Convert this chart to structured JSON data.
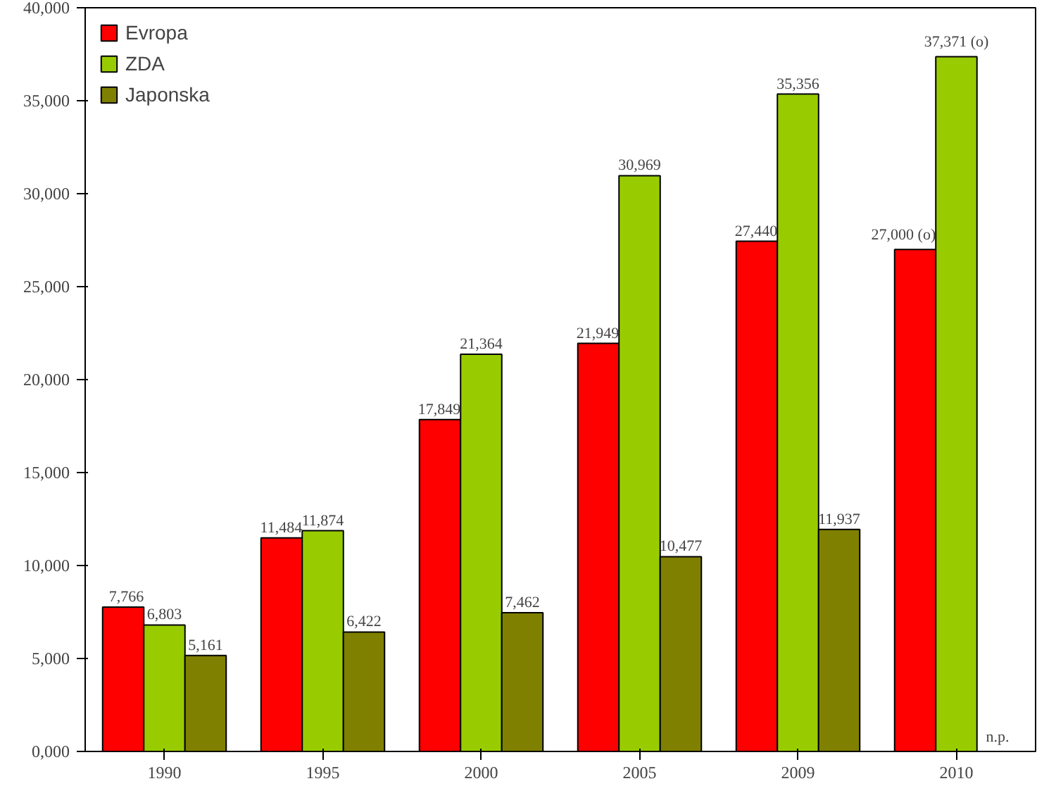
{
  "chart_data": {
    "type": "bar",
    "categories": [
      "1990",
      "1995",
      "2000",
      "2005",
      "2009",
      "2010"
    ],
    "series": [
      {
        "name": "Evropa",
        "color": "#ff0000",
        "values": [
          7766,
          11484,
          17849,
          21949,
          27440,
          27000
        ],
        "value_labels": [
          "7,766",
          "11,484",
          "17,849",
          "21,949",
          "27,440",
          "27,000 (o)"
        ]
      },
      {
        "name": "ZDA",
        "color": "#99cc00",
        "values": [
          6803,
          11874,
          21364,
          30969,
          35356,
          37371
        ],
        "value_labels": [
          "6,803",
          "11,874",
          "21,364",
          "30,969",
          "35,356",
          "37,371 (o)"
        ]
      },
      {
        "name": "Japonska",
        "color": "#808000",
        "values": [
          5161,
          6422,
          7462,
          10477,
          11937,
          null
        ],
        "value_labels": [
          "5,161",
          "6,422",
          "7,462",
          "10,477",
          "11,937",
          "n.p."
        ]
      }
    ],
    "ylim": [
      0,
      40000
    ],
    "yticks": [
      {
        "value": 0,
        "label": "0,000"
      },
      {
        "value": 5000,
        "label": "5,000"
      },
      {
        "value": 10000,
        "label": "10,000"
      },
      {
        "value": 15000,
        "label": "15,000"
      },
      {
        "value": 20000,
        "label": "20,000"
      },
      {
        "value": 25000,
        "label": "25,000"
      },
      {
        "value": 30000,
        "label": "30,000"
      },
      {
        "value": 35000,
        "label": "35,000"
      },
      {
        "value": 40000,
        "label": "40,000"
      }
    ],
    "grid": false,
    "legend": "top left"
  }
}
